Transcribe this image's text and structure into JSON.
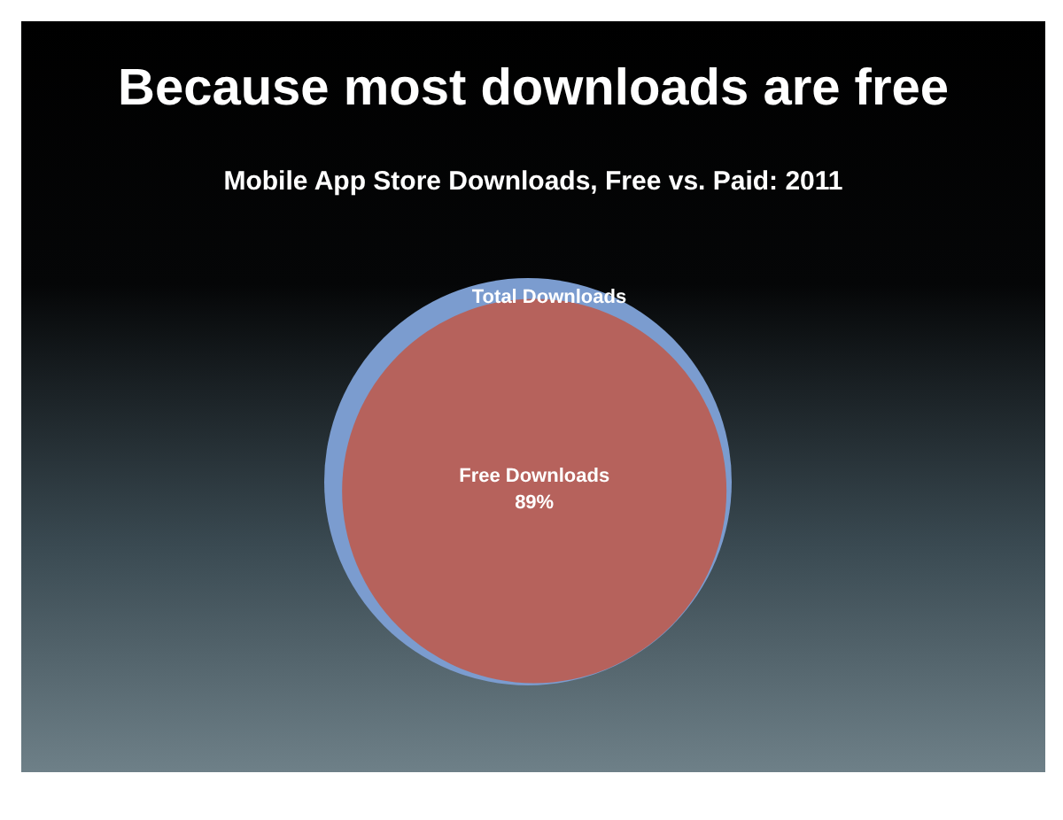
{
  "chart_data": {
    "type": "other",
    "title": "Because most downloads are free",
    "subtitle": "Mobile App Store Downloads, Free vs. Paid: 2011",
    "categories": [
      "Total Downloads",
      "Free Downloads"
    ],
    "values": [
      null,
      89
    ],
    "value_labels": [
      null,
      "89%"
    ],
    "colors": [
      "#7b9ccf",
      "#b6625c"
    ]
  }
}
